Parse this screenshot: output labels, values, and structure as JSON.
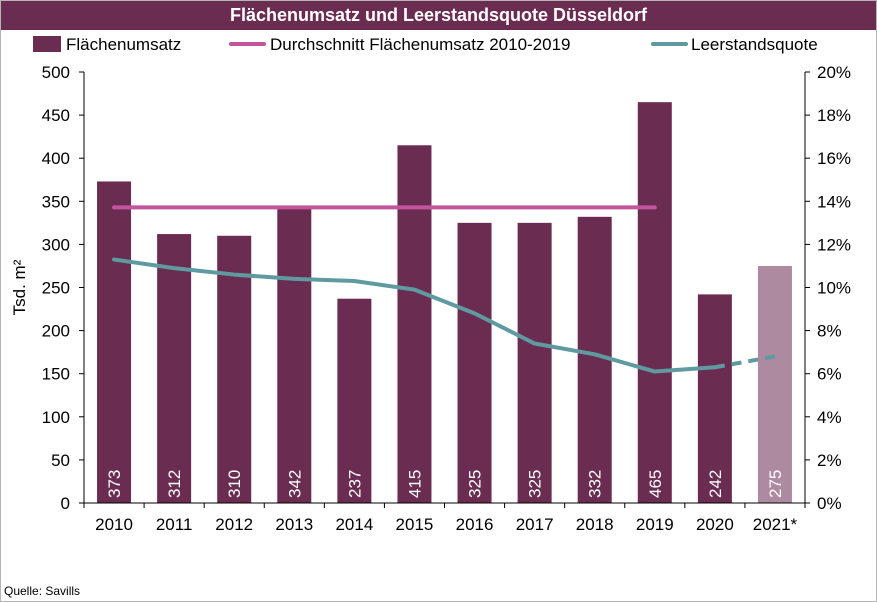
{
  "header": {
    "title": "Flächenumsatz und Leerstandsquote Düsseldorf"
  },
  "footer": {
    "source": "Quelle: Savills"
  },
  "colors": {
    "bar": "#6b2c51",
    "bar_estimate": "#ae8aa0",
    "average_line": "#c2559b",
    "vacancy_line": "#5e9aa0",
    "title_bg": "#6b2c51"
  },
  "chart_data": {
    "type": "bar",
    "title": "Flächenumsatz und Leerstandsquote Düsseldorf",
    "categories": [
      "2010",
      "2011",
      "2012",
      "2013",
      "2014",
      "2015",
      "2016",
      "2017",
      "2018",
      "2019",
      "2020",
      "2021*"
    ],
    "ylabel": "Tsd. m²",
    "ylim": [
      0,
      500
    ],
    "yticks": [
      0,
      50,
      100,
      150,
      200,
      250,
      300,
      350,
      400,
      450,
      500
    ],
    "y2lim": [
      0,
      20
    ],
    "y2ticks": [
      "0%",
      "2%",
      "4%",
      "6%",
      "8%",
      "10%",
      "12%",
      "14%",
      "16%",
      "18%",
      "20%"
    ],
    "grid": false,
    "legend_position": "top",
    "series": [
      {
        "name": "Flächenumsatz",
        "type": "bar",
        "axis": "left",
        "values": [
          373,
          312,
          310,
          342,
          237,
          415,
          325,
          325,
          332,
          465,
          242,
          275
        ],
        "labels": [
          "373",
          "312",
          "310",
          "342",
          "237",
          "415",
          "325",
          "325",
          "332",
          "465",
          "242",
          "275"
        ]
      },
      {
        "name": "Durchschnitt Flächenumsatz 2010-2019",
        "type": "line",
        "axis": "left",
        "x_range": [
          "2010",
          "2019"
        ],
        "value": 343
      },
      {
        "name": "Leerstandsquote",
        "type": "line",
        "axis": "right",
        "unit": "%",
        "values": [
          11.3,
          10.9,
          10.6,
          10.4,
          10.3,
          9.9,
          8.8,
          7.4,
          6.9,
          6.1,
          6.3,
          6.8
        ],
        "dashed_from": "2020"
      }
    ]
  }
}
